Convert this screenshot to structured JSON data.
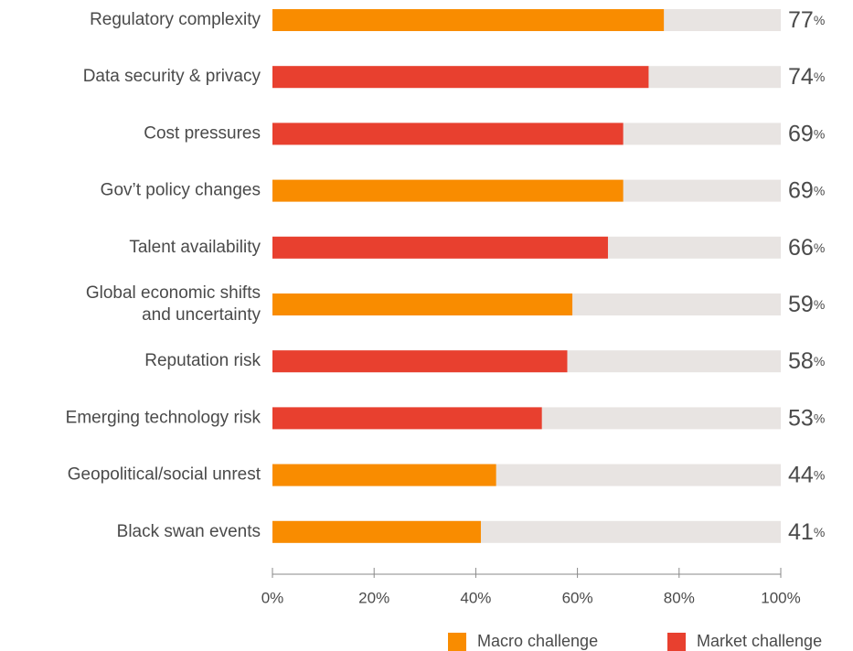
{
  "chart_data": {
    "type": "bar",
    "orientation": "horizontal",
    "categories": [
      "Regulatory complexity",
      "Data security & privacy",
      "Cost pressures",
      "Gov’t policy changes",
      "Talent availability",
      "Global economic shifts\nand uncertainty",
      "Reputation risk",
      "Emerging technology risk",
      "Geopolitical/social unrest",
      "Black swan events"
    ],
    "values": [
      77,
      74,
      69,
      69,
      66,
      59,
      58,
      53,
      44,
      41
    ],
    "value_labels": [
      "77%",
      "74%",
      "69%",
      "69%",
      "66%",
      "59%",
      "58%",
      "53%",
      "44%",
      "41%"
    ],
    "colors": [
      "#f98c00",
      "#e8402f",
      "#e8402f",
      "#f98c00",
      "#e8402f",
      "#f98c00",
      "#e8402f",
      "#e8402f",
      "#f98c00",
      "#f98c00"
    ],
    "track_color": "#e8e4e2",
    "legend": [
      {
        "name": "Macro challenge",
        "color": "#f98c00"
      },
      {
        "name": "Market challenge",
        "color": "#e8402f"
      }
    ],
    "xlim": [
      0,
      100
    ],
    "xticks": [
      {
        "value": 0,
        "label": "0%"
      },
      {
        "value": 20,
        "label": "20%"
      },
      {
        "value": 40,
        "label": "40%"
      },
      {
        "value": 60,
        "label": "60%"
      },
      {
        "value": 80,
        "label": "80%"
      },
      {
        "value": 100,
        "label": "100%"
      }
    ]
  }
}
